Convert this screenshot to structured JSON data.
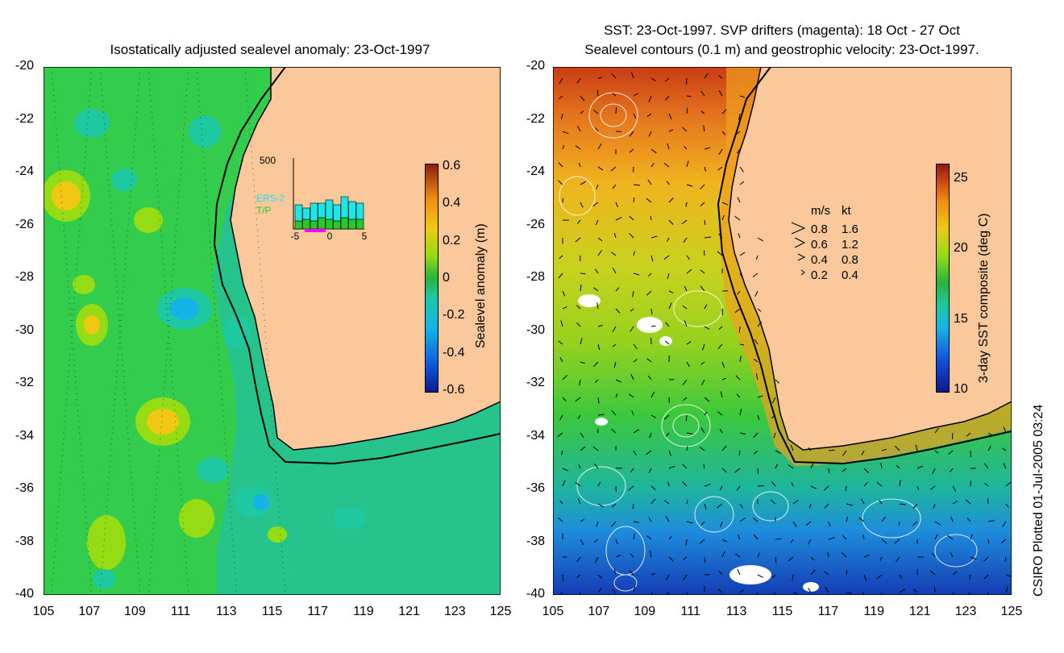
{
  "left_panel": {
    "title": "Isostatically adjusted sealevel anomaly: 23-Oct-1997",
    "colorbar": {
      "label": "Sealevel anomaly (m)",
      "ticks": [
        "0.6",
        "0.4",
        "0.2",
        "0",
        "-0.2",
        "-0.4",
        "-0.6"
      ],
      "colors": [
        "#0a1a8c",
        "#0a5adc",
        "#14b4e6",
        "#1ec8a0",
        "#28b43c",
        "#96dc14",
        "#f0c814",
        "#f08c14",
        "#c83c14",
        "#8c1e0a"
      ]
    },
    "inset": {
      "y_max": "500",
      "series": [
        "ERS-2",
        "T/P"
      ],
      "x_ticks": [
        "-5",
        "0",
        "5"
      ],
      "ers2_color": "#1ee6e6",
      "tp_color": "#28c828",
      "window_color": "#ff00ff"
    }
  },
  "right_panel": {
    "title_line1": "SST: 23-Oct-1997. SVP drifters (magenta): 18 Oct - 27 Oct",
    "title_line2": "Sealevel contours (0.1 m) and geostrophic velocity: 23-Oct-1997.",
    "colorbar": {
      "label": "3-day SST composite (deg C)",
      "ticks": [
        "25",
        "20",
        "15",
        "10"
      ]
    },
    "velocity_legend": {
      "headers": [
        "m/s",
        "kt"
      ],
      "rows": [
        [
          "0.8",
          "1.6"
        ],
        [
          "0.6",
          "1.2"
        ],
        [
          "0.4",
          "0.8"
        ],
        [
          "0.2",
          "0.4"
        ]
      ]
    }
  },
  "axes": {
    "lat_ticks": [
      "-20",
      "-22",
      "-24",
      "-26",
      "-28",
      "-30",
      "-32",
      "-34",
      "-36",
      "-38",
      "-40"
    ],
    "lon_ticks": [
      "105",
      "107",
      "109",
      "111",
      "113",
      "115",
      "117",
      "119",
      "121",
      "123",
      "125"
    ]
  },
  "land_color": "#fac89b",
  "footer": "CSIRO Plotted 01-Jul-2005 03:24"
}
